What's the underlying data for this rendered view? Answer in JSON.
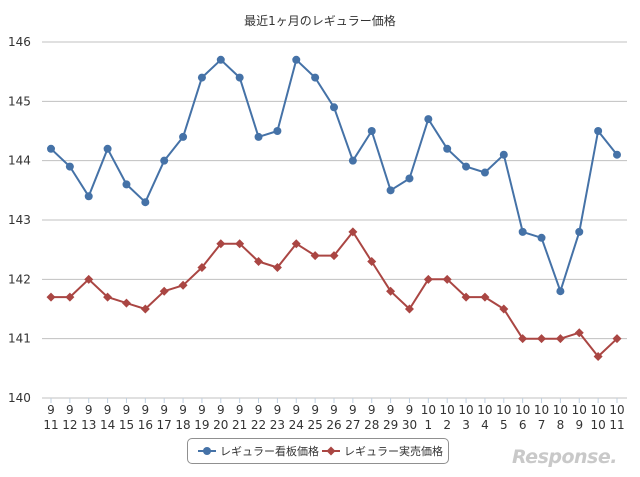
{
  "chart_data": {
    "type": "line",
    "title": "最近1ヶ月のレギュラー価格",
    "x_tick_labels": [
      [
        "9",
        "11"
      ],
      [
        "9",
        "12"
      ],
      [
        "9",
        "13"
      ],
      [
        "9",
        "14"
      ],
      [
        "9",
        "15"
      ],
      [
        "9",
        "16"
      ],
      [
        "9",
        "17"
      ],
      [
        "9",
        "18"
      ],
      [
        "9",
        "19"
      ],
      [
        "9",
        "20"
      ],
      [
        "9",
        "21"
      ],
      [
        "9",
        "22"
      ],
      [
        "9",
        "23"
      ],
      [
        "9",
        "24"
      ],
      [
        "9",
        "25"
      ],
      [
        "9",
        "26"
      ],
      [
        "9",
        "27"
      ],
      [
        "9",
        "28"
      ],
      [
        "9",
        "29"
      ],
      [
        "9",
        "30"
      ],
      [
        "10",
        "1"
      ],
      [
        "10",
        "2"
      ],
      [
        "10",
        "3"
      ],
      [
        "10",
        "4"
      ],
      [
        "10",
        "5"
      ],
      [
        "10",
        "6"
      ],
      [
        "10",
        "7"
      ],
      [
        "10",
        "8"
      ],
      [
        "10",
        "9"
      ],
      [
        "10",
        "10"
      ],
      [
        "10",
        "11"
      ]
    ],
    "categories": [
      "9/11",
      "9/12",
      "9/13",
      "9/14",
      "9/15",
      "9/16",
      "9/17",
      "9/18",
      "9/19",
      "9/20",
      "9/21",
      "9/22",
      "9/23",
      "9/24",
      "9/25",
      "9/26",
      "9/27",
      "9/28",
      "9/29",
      "9/30",
      "10/1",
      "10/2",
      "10/3",
      "10/4",
      "10/5",
      "10/6",
      "10/7",
      "10/8",
      "10/9",
      "10/10",
      "10/11"
    ],
    "ylim": [
      140,
      146
    ],
    "y_ticks": [
      140,
      141,
      142,
      143,
      144,
      145,
      146
    ],
    "grid": true,
    "legend_position": "bottom",
    "series": [
      {
        "name": "レギュラー看板価格",
        "color": "#4572a7",
        "marker": "circle",
        "values": [
          144.2,
          143.9,
          143.4,
          144.2,
          143.6,
          143.3,
          144.0,
          144.4,
          145.4,
          145.7,
          145.4,
          144.4,
          144.5,
          145.7,
          145.4,
          144.9,
          144.0,
          144.5,
          143.5,
          143.7,
          144.7,
          144.2,
          143.9,
          143.8,
          144.1,
          142.8,
          142.7,
          141.8,
          142.8,
          144.5,
          144.1
        ]
      },
      {
        "name": "レギュラー実売価格",
        "color": "#aa4643",
        "marker": "diamond",
        "values": [
          141.7,
          141.7,
          142.0,
          141.7,
          141.6,
          141.5,
          141.8,
          141.9,
          142.2,
          142.6,
          142.6,
          142.3,
          142.2,
          142.6,
          142.4,
          142.4,
          142.8,
          142.3,
          141.8,
          141.5,
          142.0,
          142.0,
          141.7,
          141.7,
          141.5,
          141.0,
          141.0,
          141.0,
          141.1,
          140.7,
          141.0
        ]
      }
    ]
  },
  "watermark": "Response."
}
